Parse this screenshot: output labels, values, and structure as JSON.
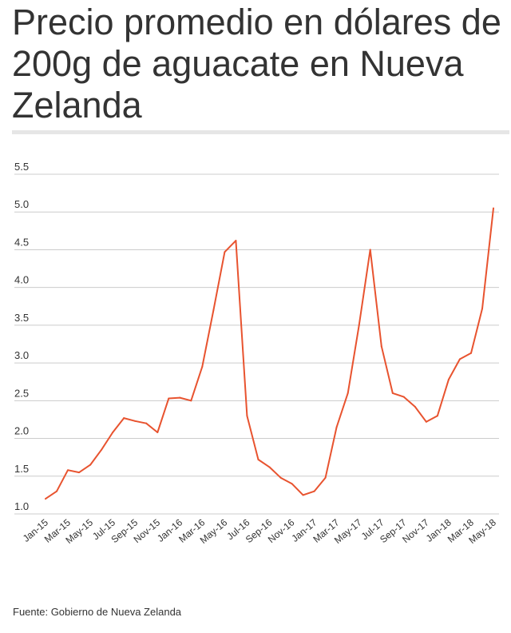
{
  "header": {
    "title": "Precio promedio en dólares de 200g de aguacate en Nueva Zelanda"
  },
  "footer": {
    "source": "Fuente: Gobierno de Nueva Zelanda"
  },
  "colors": {
    "line": "#e8532f",
    "grid": "#cccccc",
    "text": "#333333"
  },
  "chart_data": {
    "type": "line",
    "title": "Precio promedio en dólares de 200g de aguacate en Nueva Zelanda",
    "xlabel": "",
    "ylabel": "",
    "ylim": [
      1.0,
      5.5
    ],
    "yticks": [
      "1.0",
      "1.5",
      "2.0",
      "2.5",
      "3.0",
      "3.5",
      "4.0",
      "4.5",
      "5.0",
      "5.5"
    ],
    "grid": true,
    "x": [
      "Jan-15",
      "Feb-15",
      "Mar-15",
      "Apr-15",
      "May-15",
      "Jun-15",
      "Jul-15",
      "Aug-15",
      "Sep-15",
      "Oct-15",
      "Nov-15",
      "Dec-15",
      "Jan-16",
      "Feb-16",
      "Mar-16",
      "Apr-16",
      "May-16",
      "Jun-16",
      "Jul-16",
      "Aug-16",
      "Sep-16",
      "Oct-16",
      "Nov-16",
      "Dec-16",
      "Jan-17",
      "Feb-17",
      "Mar-17",
      "Apr-17",
      "May-17",
      "Jun-17",
      "Jul-17",
      "Aug-17",
      "Sep-17",
      "Oct-17",
      "Nov-17",
      "Dec-17",
      "Jan-18",
      "Feb-18",
      "Mar-18",
      "Apr-18",
      "May-18"
    ],
    "xtick_labels": [
      "Jan-15",
      "Mar-15",
      "May-15",
      "Jul-15",
      "Sep-15",
      "Nov-15",
      "Jan-16",
      "Mar-16",
      "May-16",
      "Jul-16",
      "Sep-16",
      "Nov-16",
      "Jan-17",
      "Mar-17",
      "May-17",
      "Jul-17",
      "Sep-17",
      "Nov-17",
      "Jan-18",
      "Mar-18",
      "May-18"
    ],
    "series": [
      {
        "values": [
          1.2,
          1.3,
          1.58,
          1.55,
          1.65,
          1.85,
          2.08,
          2.27,
          2.23,
          2.2,
          2.08,
          2.53,
          2.54,
          2.5,
          2.95,
          3.7,
          4.47,
          4.62,
          2.3,
          1.72,
          1.62,
          1.48,
          1.4,
          1.25,
          1.3,
          1.48,
          2.15,
          2.6,
          3.5,
          4.5,
          3.22,
          2.6,
          2.55,
          2.42,
          2.22,
          2.3,
          2.78,
          3.05,
          3.13,
          3.72,
          5.05
        ]
      }
    ]
  }
}
